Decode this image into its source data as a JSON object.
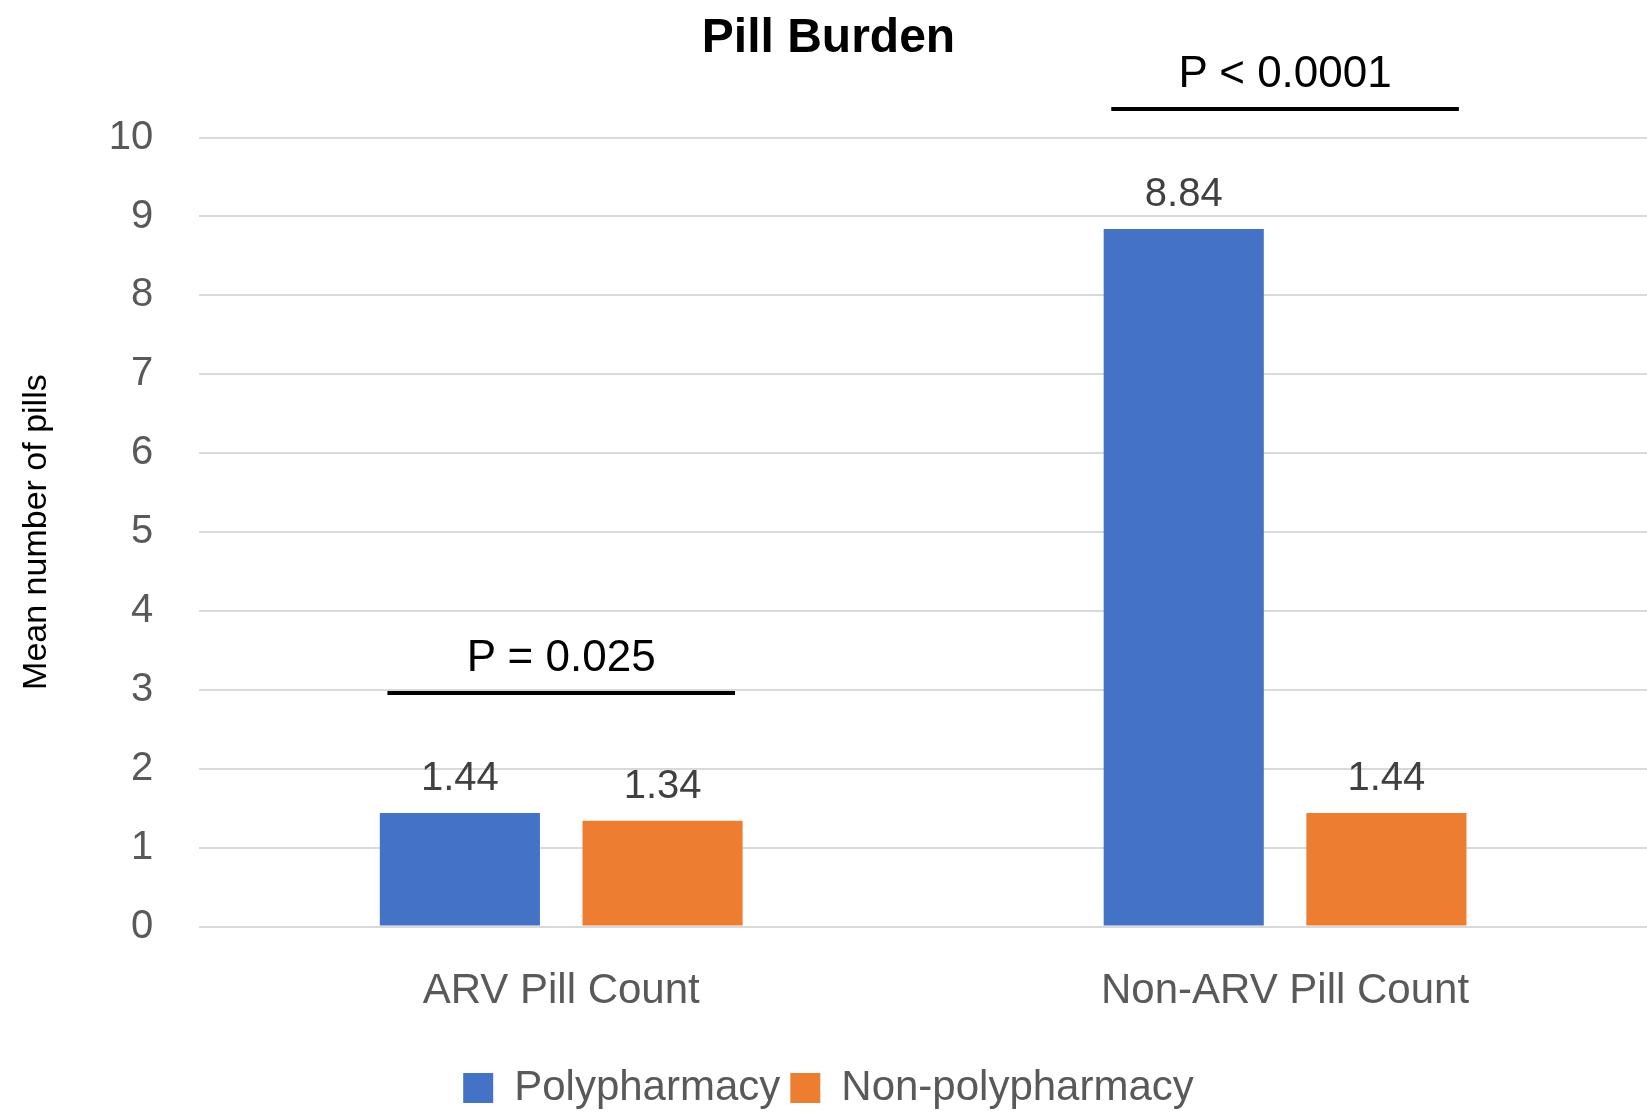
{
  "chart_data": {
    "type": "bar",
    "title": "Pill Burden",
    "ylabel": "Mean number of pills",
    "categories": [
      "ARV Pill Count",
      "Non-ARV Pill Count"
    ],
    "series": [
      {
        "name": "Polypharmacy",
        "color": "#4472c4",
        "values": [
          1.44,
          8.84
        ]
      },
      {
        "name": "Non-polypharmacy",
        "color": "#ed7d31",
        "values": [
          1.34,
          1.44
        ]
      }
    ],
    "ylim": [
      0,
      10
    ],
    "yticks": [
      0,
      1,
      2,
      3,
      4,
      5,
      6,
      7,
      8,
      9,
      10
    ],
    "grid": "y",
    "legend": "bottom",
    "data_labels": true,
    "annotations": [
      "P = 0.025",
      "P < 0.0001"
    ]
  }
}
